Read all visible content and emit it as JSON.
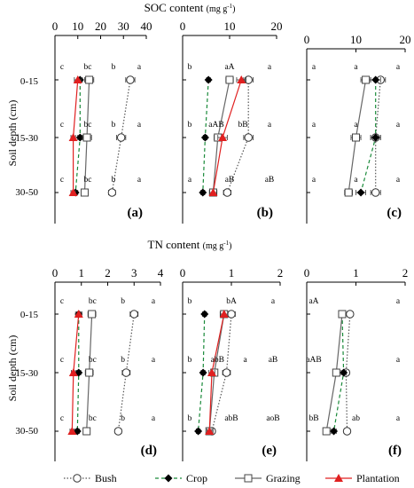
{
  "figure": {
    "title_top": "SOC content",
    "unit_top": "(mg g",
    "unit_top_sup": "-1",
    "unit_top_close": ")",
    "title_bottom": "TN content",
    "unit_bottom": "(mg g",
    "unit_bottom_sup": "-1",
    "unit_bottom_close": ")",
    "ylabel": "Soil depth (cm)"
  },
  "legend": [
    {
      "name": "Bush",
      "color": "#555555",
      "line": "dotted",
      "marker": "open-circle"
    },
    {
      "name": "Crop",
      "color": "#1a8a3a",
      "line": "dashed",
      "marker": "filled-diamond"
    },
    {
      "name": "Grazing",
      "color": "#666666",
      "line": "solid",
      "marker": "open-square"
    },
    {
      "name": "Plantation",
      "color": "#e02020",
      "line": "solid",
      "marker": "filled-triangle"
    }
  ],
  "depth_labels": [
    "0-15",
    "15-30",
    "30-50"
  ],
  "chart_data": [
    {
      "type": "line",
      "panel": "(a)",
      "variable": "SOC",
      "xlim": [
        0,
        40
      ],
      "xticks": [
        "0",
        "10",
        "20",
        "30",
        "40"
      ],
      "series": [
        {
          "name": "Bush",
          "values": [
            33,
            29,
            25
          ],
          "err": [
            2,
            2,
            1.5
          ]
        },
        {
          "name": "Crop",
          "values": [
            11,
            11,
            9
          ],
          "err": [
            1,
            1,
            1
          ]
        },
        {
          "name": "Grazing",
          "values": [
            15,
            14,
            13
          ],
          "err": [
            2,
            2,
            1
          ]
        },
        {
          "name": "Plantation",
          "values": [
            10,
            8,
            8
          ],
          "err": [
            1.5,
            1,
            1
          ]
        }
      ],
      "annotations": [
        [
          "c",
          "bc",
          "b",
          "a"
        ],
        [
          "c",
          "bc",
          "b",
          "a"
        ],
        [
          "c",
          "bc",
          "b",
          "a"
        ]
      ]
    },
    {
      "type": "line",
      "panel": "(b)",
      "variable": "SOC",
      "xlim": [
        0,
        20
      ],
      "xticks": [
        "0",
        "10",
        "20"
      ],
      "series": [
        {
          "name": "Bush",
          "values": [
            14,
            14,
            9.5
          ],
          "err": [
            1,
            1,
            0.8
          ]
        },
        {
          "name": "Crop",
          "values": [
            5.5,
            4.8,
            4.3
          ],
          "err": [
            0.4,
            0.4,
            0.4
          ]
        },
        {
          "name": "Grazing",
          "values": [
            10,
            7.5,
            6.5
          ],
          "err": [
            0.8,
            0.8,
            0.6
          ]
        },
        {
          "name": "Plantation",
          "values": [
            12.5,
            8.5,
            6.5
          ],
          "err": [
            1,
            1,
            0.8
          ]
        }
      ],
      "annotations": [
        [
          "b",
          "aA",
          "a"
        ],
        [
          "b",
          "aAB",
          "bB",
          "a"
        ],
        [
          "a",
          "aB",
          "aB"
        ]
      ]
    },
    {
      "type": "line",
      "panel": "(c)",
      "variable": "SOC",
      "xlim": [
        0,
        20
      ],
      "xticks": [
        "0",
        "10",
        "20"
      ],
      "series": [
        {
          "name": "Bush",
          "values": [
            15,
            14,
            14
          ],
          "err": [
            1,
            1,
            1
          ]
        },
        {
          "name": "Crop",
          "values": [
            14,
            14,
            11
          ],
          "err": [
            1,
            1,
            1
          ]
        },
        {
          "name": "Grazing",
          "values": [
            12,
            10,
            8.5
          ],
          "err": [
            1,
            1,
            0.8
          ]
        }
      ],
      "annotations": [
        [
          "a",
          "a",
          "a"
        ],
        [
          "a",
          "a",
          "a"
        ],
        [
          "a",
          "a",
          "a"
        ]
      ]
    },
    {
      "type": "line",
      "panel": "(d)",
      "variable": "TN",
      "xlim": [
        0,
        4
      ],
      "xticks": [
        "0",
        "1",
        "2",
        "3",
        "4"
      ],
      "series": [
        {
          "name": "Bush",
          "values": [
            3.0,
            2.7,
            2.4
          ],
          "err": [
            0.15,
            0.15,
            0.12
          ]
        },
        {
          "name": "Crop",
          "values": [
            0.9,
            0.9,
            0.85
          ],
          "err": [
            0.08,
            0.08,
            0.08
          ]
        },
        {
          "name": "Grazing",
          "values": [
            1.4,
            1.3,
            1.2
          ],
          "err": [
            0.15,
            0.15,
            0.12
          ]
        },
        {
          "name": "Plantation",
          "values": [
            0.9,
            0.7,
            0.65
          ],
          "err": [
            0.12,
            0.08,
            0.08
          ]
        }
      ],
      "annotations": [
        [
          "c",
          "bc",
          "b",
          "a"
        ],
        [
          "c",
          "bc",
          "b",
          "a"
        ],
        [
          "c",
          "bc",
          "b",
          "a"
        ]
      ]
    },
    {
      "type": "line",
      "panel": "(e)",
      "variable": "TN",
      "xlim": [
        0,
        2
      ],
      "xticks": [
        "0",
        "1",
        "2"
      ],
      "series": [
        {
          "name": "Bush",
          "values": [
            1.0,
            0.9,
            0.6
          ],
          "err": [
            0.08,
            0.08,
            0.06
          ]
        },
        {
          "name": "Crop",
          "values": [
            0.45,
            0.42,
            0.32
          ],
          "err": [
            0.04,
            0.04,
            0.04
          ]
        },
        {
          "name": "Grazing",
          "values": [
            0.85,
            0.65,
            0.55
          ],
          "err": [
            0.06,
            0.06,
            0.05
          ]
        },
        {
          "name": "Plantation",
          "values": [
            0.85,
            0.6,
            0.55
          ],
          "err": [
            0.08,
            0.06,
            0.05
          ]
        }
      ],
      "annotations": [
        [
          "b",
          "bA",
          "a"
        ],
        [
          "b",
          "abB",
          "a",
          "aB"
        ],
        [
          "b",
          "abB",
          "aoB"
        ]
      ]
    },
    {
      "type": "line",
      "panel": "(f)",
      "variable": "TN",
      "xlim": [
        0,
        2
      ],
      "xticks": [
        "0",
        "1",
        "2"
      ],
      "series": [
        {
          "name": "Bush",
          "values": [
            0.88,
            0.8,
            0.82
          ],
          "err": [
            0.06,
            0.06,
            0.06
          ]
        },
        {
          "name": "Crop",
          "values": [
            0.72,
            0.75,
            0.55
          ],
          "err": [
            0.05,
            0.05,
            0.05
          ]
        },
        {
          "name": "Grazing",
          "values": [
            0.72,
            0.6,
            0.4
          ],
          "err": [
            0.06,
            0.06,
            0.05
          ]
        }
      ],
      "annotations": [
        [
          "aA",
          "a"
        ],
        [
          "aAB",
          "a"
        ],
        [
          "bB",
          "ab",
          "a"
        ]
      ]
    }
  ]
}
